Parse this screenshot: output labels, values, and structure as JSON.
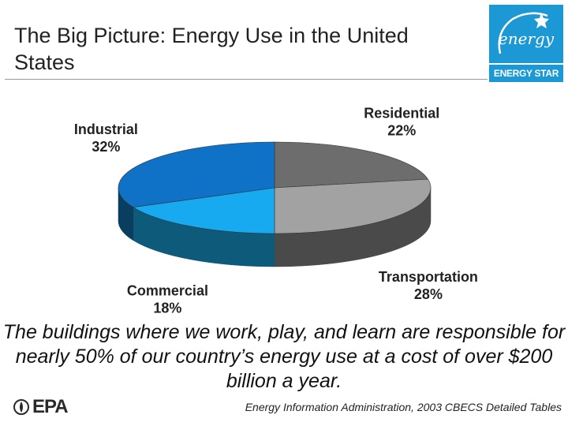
{
  "title": "The Big Picture: Energy Use in the United States",
  "logo": {
    "script": "energy",
    "label": "ENERGY STAR"
  },
  "chart_data": {
    "type": "pie",
    "style": "3d",
    "slices": [
      {
        "label": "Residential",
        "value": 22,
        "display": "22%",
        "color": "#6d6d6d",
        "side": "#3f3f3f"
      },
      {
        "label": "Transportation",
        "value": 28,
        "display": "28%",
        "color": "#a2a2a2",
        "side": "#4a4a4a"
      },
      {
        "label": "Commercial",
        "value": 18,
        "display": "18%",
        "color": "#17aaf0",
        "side": "#0e5a7a"
      },
      {
        "label": "Industrial",
        "value": 32,
        "display": "32%",
        "color": "#0f72c6",
        "side": "#093e5e"
      }
    ]
  },
  "caption": "The buildings where we work, play, and learn are responsible for nearly 50% of our country’s energy use at a cost of over $200 billion a year.",
  "source": "Energy Information Administration, 2003 CBECS Detailed Tables",
  "epa_logo": "EPA"
}
